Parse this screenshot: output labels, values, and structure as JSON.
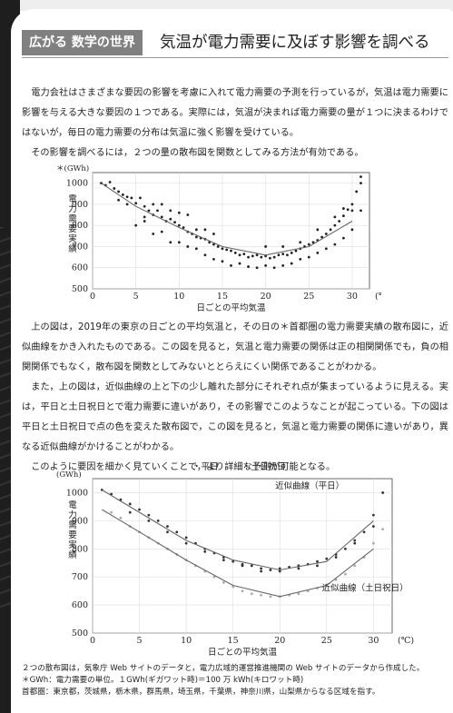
{
  "header": {
    "tag": "広がる 数学の世界",
    "title": "気温が電力需要に及ぼす影響を調べる"
  },
  "intro": [
    "電力会社はさまざまな要因の影響を考慮に入れて電力需要の予測を行っているが，気温は電力需要に影響を与える大きな要因の１つである。実際には，気温が決まれば電力需要の量が１つに決まるわけではないが，毎日の電力需要の分布は気温に強く影響を受けている。",
    "その影響を調べるには，２つの量の散布図を関数としてみる方法が有効である。"
  ],
  "middle": [
    "上の図は，2019年の東京の日ごとの平均気温と，その日の＊首都圏の電力需要実績の散布図に，近似曲線をかき入れたものである。この図を見ると，気温と電力需要の関係は正の相関関係でも，負の相関関係でもなく，散布図を関数としてみないととらえにくい関係であることがわかる。",
    "また，上の図は，近似曲線の上と下の少し離れた部分にそれぞれ点が集まっているように見える。実は，平日と土日祝日とで電力需要に違いがあり，その影響でこのようなことが起こっている。下の図は平日と土日祝日で点の色を変えた散布図で，この図を見ると，気温と電力需要の関係に違いがあり，異なる近似曲線がかけることがわかる。",
    "このように要因を細かく見ていくことで，より詳細な予測が可能となる。"
  ],
  "chart_data": [
    {
      "type": "scatter",
      "xlabel": "日ごとの平均気温",
      "ylabel": "電力需要実績",
      "yunit": "＊(GWh)",
      "xunit": "(℃)",
      "xlim": [
        0,
        32
      ],
      "ylim": [
        500,
        1050
      ],
      "xticks": [
        "0",
        "5",
        "10",
        "15",
        "20",
        "25",
        "30"
      ],
      "yticks": [
        "500",
        "600",
        "700",
        "800",
        "900",
        "1000"
      ],
      "series": [
        {
          "points": [
            [
              1,
              1000
            ],
            [
              1.5,
              990
            ],
            [
              2,
              1005
            ],
            [
              2.5,
              975
            ],
            [
              3,
              960
            ],
            [
              3.5,
              945
            ],
            [
              4,
              935
            ],
            [
              4.5,
              930
            ],
            [
              5,
              905
            ],
            [
              5.5,
              930
            ],
            [
              6,
              890
            ],
            [
              6.5,
              870
            ],
            [
              7,
              850
            ],
            [
              7.5,
              870
            ],
            [
              8,
              840
            ],
            [
              8.5,
              820
            ],
            [
              9,
              830
            ],
            [
              9.5,
              815
            ],
            [
              10,
              800
            ],
            [
              10.5,
              790
            ],
            [
              11,
              770
            ],
            [
              11.5,
              760
            ],
            [
              12,
              745
            ],
            [
              12.5,
              740
            ],
            [
              13,
              735
            ],
            [
              13.5,
              720
            ],
            [
              14,
              710
            ],
            [
              14.5,
              700
            ],
            [
              15,
              690
            ],
            [
              15.5,
              685
            ],
            [
              16,
              680
            ],
            [
              16.5,
              670
            ],
            [
              17,
              660
            ],
            [
              17.5,
              665
            ],
            [
              18,
              650
            ],
            [
              18.5,
              655
            ],
            [
              19,
              660
            ],
            [
              19.5,
              650
            ],
            [
              20,
              655
            ],
            [
              20.5,
              645
            ],
            [
              21,
              650
            ],
            [
              21.5,
              660
            ],
            [
              22,
              665
            ],
            [
              22.5,
              660
            ],
            [
              23,
              670
            ],
            [
              23.5,
              680
            ],
            [
              24,
              690
            ],
            [
              24.5,
              700
            ],
            [
              25,
              710
            ],
            [
              25.5,
              720
            ],
            [
              26,
              730
            ],
            [
              26.5,
              745
            ],
            [
              27,
              760
            ],
            [
              27.5,
              780
            ],
            [
              28,
              800
            ],
            [
              28.5,
              820
            ],
            [
              29,
              845
            ],
            [
              29.5,
              875
            ],
            [
              30,
              900
            ],
            [
              30.5,
              960
            ],
            [
              31,
              1030
            ],
            [
              5,
              800
            ],
            [
              6,
              820
            ],
            [
              7,
              760
            ],
            [
              8,
              770
            ],
            [
              9,
              720
            ],
            [
              10,
              720
            ],
            [
              11,
              700
            ],
            [
              12,
              690
            ],
            [
              13,
              660
            ],
            [
              14,
              640
            ],
            [
              15,
              630
            ],
            [
              16,
              610
            ],
            [
              17,
              620
            ],
            [
              18,
              605
            ],
            [
              19,
              600
            ],
            [
              20,
              610
            ],
            [
              21,
              600
            ],
            [
              22,
              610
            ],
            [
              23,
              620
            ],
            [
              24,
              640
            ],
            [
              25,
              650
            ],
            [
              26,
              670
            ],
            [
              27,
              690
            ],
            [
              28,
              710
            ],
            [
              29,
              740
            ],
            [
              30,
              780
            ],
            [
              8,
              900
            ],
            [
              9,
              870
            ],
            [
              10,
              860
            ],
            [
              11,
              850
            ],
            [
              12,
              780
            ],
            [
              13,
              780
            ],
            [
              14,
              760
            ],
            [
              20,
              700
            ],
            [
              22,
              700
            ],
            [
              24,
              720
            ],
            [
              26,
              780
            ],
            [
              28,
              840
            ],
            [
              29,
              880
            ],
            [
              30,
              870
            ],
            [
              6,
              840
            ],
            [
              7,
              900
            ],
            [
              4,
              900
            ],
            [
              3,
              920
            ],
            [
              31,
              870
            ],
            [
              31,
              1000
            ]
          ]
        }
      ],
      "trend": [
        [
          1,
          1000
        ],
        [
          5,
          890
        ],
        [
          10,
          790
        ],
        [
          15,
          700
        ],
        [
          20,
          660
        ],
        [
          25,
          700
        ],
        [
          30,
          820
        ]
      ]
    },
    {
      "type": "scatter",
      "xlabel": "日ごとの平均気温",
      "ylabel": "電力需要実績",
      "yunit": "(GWh)",
      "xunit": "(℃)",
      "xlim": [
        0,
        32
      ],
      "ylim": [
        500,
        1050
      ],
      "xticks": [
        "0",
        "5",
        "10",
        "15",
        "20",
        "25",
        "30"
      ],
      "yticks": [
        "500",
        "600",
        "700",
        "800",
        "900",
        "1000"
      ],
      "legend": [
        "・平日",
        "・土日祝日"
      ],
      "series": [
        {
          "name": "平日",
          "color": "#333333",
          "points": [
            [
              1,
              1010
            ],
            [
              2,
              995
            ],
            [
              3,
              975
            ],
            [
              4,
              960
            ],
            [
              5,
              940
            ],
            [
              6,
              920
            ],
            [
              7,
              900
            ],
            [
              8,
              880
            ],
            [
              9,
              860
            ],
            [
              10,
              840
            ],
            [
              11,
              820
            ],
            [
              12,
              800
            ],
            [
              13,
              785
            ],
            [
              14,
              770
            ],
            [
              15,
              755
            ],
            [
              16,
              745
            ],
            [
              17,
              740
            ],
            [
              18,
              730
            ],
            [
              19,
              725
            ],
            [
              20,
              730
            ],
            [
              21,
              735
            ],
            [
              22,
              740
            ],
            [
              23,
              745
            ],
            [
              24,
              755
            ],
            [
              25,
              765
            ],
            [
              26,
              780
            ],
            [
              27,
              800
            ],
            [
              28,
              830
            ],
            [
              29,
              860
            ],
            [
              30,
              920
            ],
            [
              31,
              1000
            ],
            [
              4,
              930
            ],
            [
              6,
              900
            ],
            [
              8,
              860
            ],
            [
              10,
              820
            ],
            [
              12,
              790
            ],
            [
              14,
              760
            ],
            [
              16,
              740
            ],
            [
              18,
              720
            ],
            [
              20,
              720
            ],
            [
              22,
              730
            ],
            [
              24,
              740
            ],
            [
              26,
              770
            ],
            [
              28,
              820
            ],
            [
              30,
              880
            ]
          ]
        },
        {
          "name": "土日祝日",
          "color": "#aaaaaa",
          "points": [
            [
              2,
              930
            ],
            [
              3,
              910
            ],
            [
              4,
              880
            ],
            [
              5,
              860
            ],
            [
              6,
              840
            ],
            [
              7,
              820
            ],
            [
              8,
              800
            ],
            [
              9,
              780
            ],
            [
              10,
              760
            ],
            [
              11,
              740
            ],
            [
              12,
              720
            ],
            [
              13,
              700
            ],
            [
              14,
              680
            ],
            [
              15,
              665
            ],
            [
              16,
              650
            ],
            [
              17,
              640
            ],
            [
              18,
              635
            ],
            [
              19,
              630
            ],
            [
              20,
              630
            ],
            [
              21,
              635
            ],
            [
              22,
              640
            ],
            [
              23,
              650
            ],
            [
              24,
              660
            ],
            [
              25,
              670
            ],
            [
              26,
              690
            ],
            [
              27,
              710
            ],
            [
              28,
              740
            ],
            [
              29,
              770
            ],
            [
              30,
              820
            ],
            [
              31,
              870
            ]
          ]
        }
      ],
      "trends": [
        {
          "name": "近似曲線（平日）",
          "points": [
            [
              1,
              1010
            ],
            [
              5,
              930
            ],
            [
              10,
              830
            ],
            [
              15,
              760
            ],
            [
              20,
              725
            ],
            [
              25,
              755
            ],
            [
              30,
              900
            ]
          ]
        },
        {
          "name": "近似曲線（土日祝日）",
          "points": [
            [
              1,
              940
            ],
            [
              5,
              860
            ],
            [
              10,
              760
            ],
            [
              15,
              670
            ],
            [
              20,
              630
            ],
            [
              25,
              670
            ],
            [
              30,
              800
            ]
          ]
        }
      ],
      "labels": [
        "近似曲線（平日）",
        "近似曲線（土日祝日）"
      ]
    }
  ],
  "footnotes": [
    "２つの散布図は，気象庁 Web サイトのデータと，電力広域的運営推進機関の Web サイトのデータから作成した。",
    "＊GWh：電力需要の単位。１GWh(ギガワット時)＝100 万 kWh(キロワット時)",
    "首都圏：東京都，茨城県，栃木県，群馬県，埼玉県，千葉県，神奈川県，山梨県からなる区域を指す。"
  ]
}
